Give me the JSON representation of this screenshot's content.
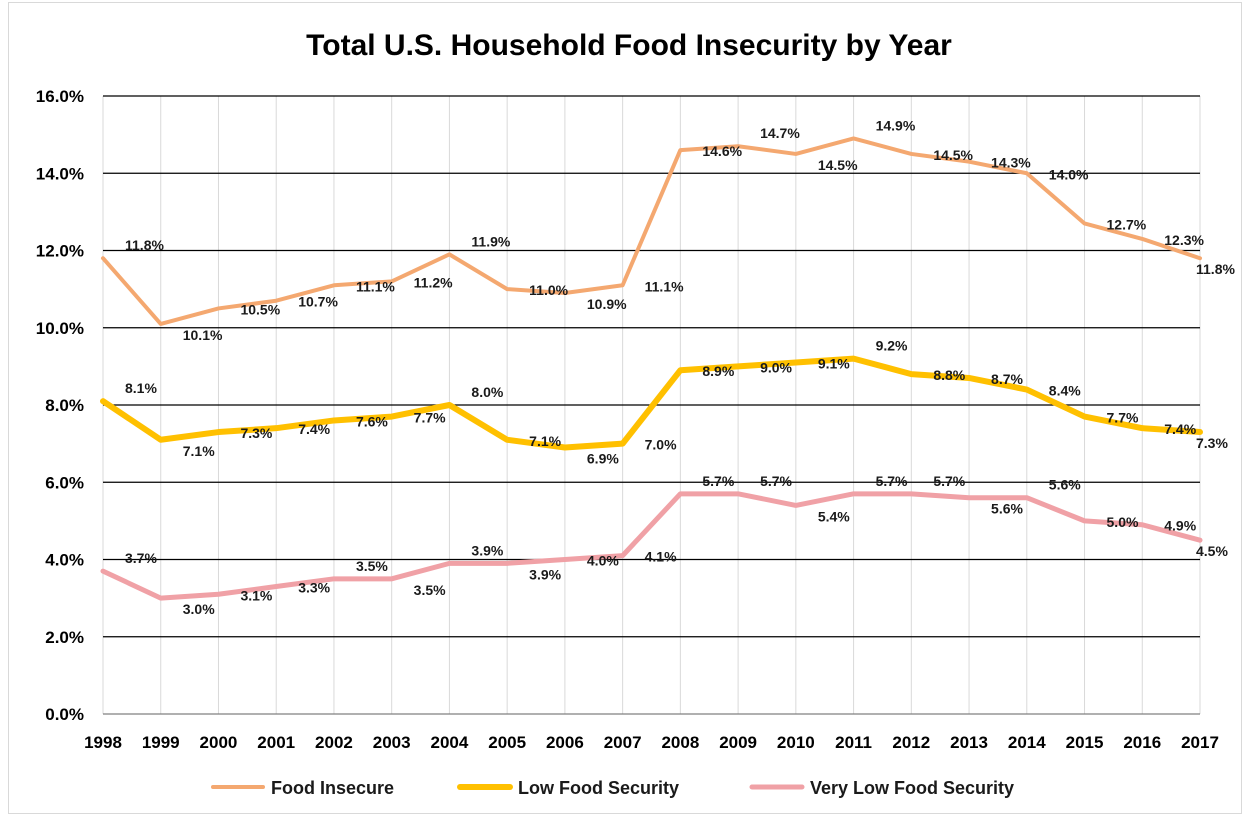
{
  "chart_data": {
    "type": "line",
    "title": "Total U.S. Household Food Insecurity by Year",
    "xlabel": "",
    "ylabel": "",
    "ylim": [
      0,
      16
    ],
    "yticks": [
      "0.0%",
      "2.0%",
      "4.0%",
      "6.0%",
      "8.0%",
      "10.0%",
      "12.0%",
      "14.0%",
      "16.0%"
    ],
    "grid": "horizontal major, vertical light",
    "legend": "bottom",
    "categories": [
      "1998",
      "1999",
      "2000",
      "2001",
      "2002",
      "2003",
      "2004",
      "2005",
      "2006",
      "2007",
      "2008",
      "2009",
      "2010",
      "2011",
      "2012",
      "2013",
      "2014",
      "2015",
      "2016",
      "2017"
    ],
    "series": [
      {
        "name": "Food Insecure",
        "color": "#f4a870",
        "values": [
          11.8,
          10.1,
          10.5,
          10.7,
          11.1,
          11.2,
          11.9,
          11.0,
          10.9,
          11.1,
          14.6,
          14.7,
          14.5,
          14.9,
          14.5,
          14.3,
          14.0,
          12.7,
          12.3,
          11.8
        ],
        "labels": [
          "11.8%",
          "10.1%",
          "10.5%",
          "10.7%",
          "11.1%",
          "11.2%",
          "11.9%",
          "11.0%",
          "10.9%",
          "11.1%",
          "14.6%",
          "14.7%",
          "14.5%",
          "14.9%",
          "14.5%",
          "14.3%",
          "14.0%",
          "12.7%",
          "12.3%",
          "11.8%"
        ]
      },
      {
        "name": "Low Food Security",
        "color": "#ffc000",
        "values": [
          8.1,
          7.1,
          7.3,
          7.4,
          7.6,
          7.7,
          8.0,
          7.1,
          6.9,
          7.0,
          8.9,
          9.0,
          9.1,
          9.2,
          8.8,
          8.7,
          8.4,
          7.7,
          7.4,
          7.3
        ],
        "labels": [
          "8.1%",
          "7.1%",
          "7.3%",
          "7.4%",
          "7.6%",
          "7.7%",
          "8.0%",
          "7.1%",
          "6.9%",
          "7.0%",
          "8.9%",
          "9.0%",
          "9.1%",
          "9.2%",
          "8.8%",
          "8.7%",
          "8.4%",
          "7.7%",
          "7.4%",
          "7.3%"
        ]
      },
      {
        "name": "Very Low Food Security",
        "color": "#f0a1a6",
        "values": [
          3.7,
          3.0,
          3.1,
          3.3,
          3.5,
          3.5,
          3.9,
          3.9,
          4.0,
          4.1,
          5.7,
          5.7,
          5.4,
          5.7,
          5.7,
          5.6,
          5.6,
          5.0,
          4.9,
          4.5
        ],
        "labels": [
          "3.7%",
          "3.0%",
          "3.1%",
          "3.3%",
          "3.5%",
          "3.5%",
          "3.9%",
          "3.9%",
          "4.0%",
          "4.1%",
          "5.7%",
          "5.7%",
          "5.4%",
          "5.7%",
          "5.7%",
          "5.6%",
          "5.6%",
          "5.0%",
          "4.9%",
          "4.5%"
        ]
      }
    ]
  }
}
